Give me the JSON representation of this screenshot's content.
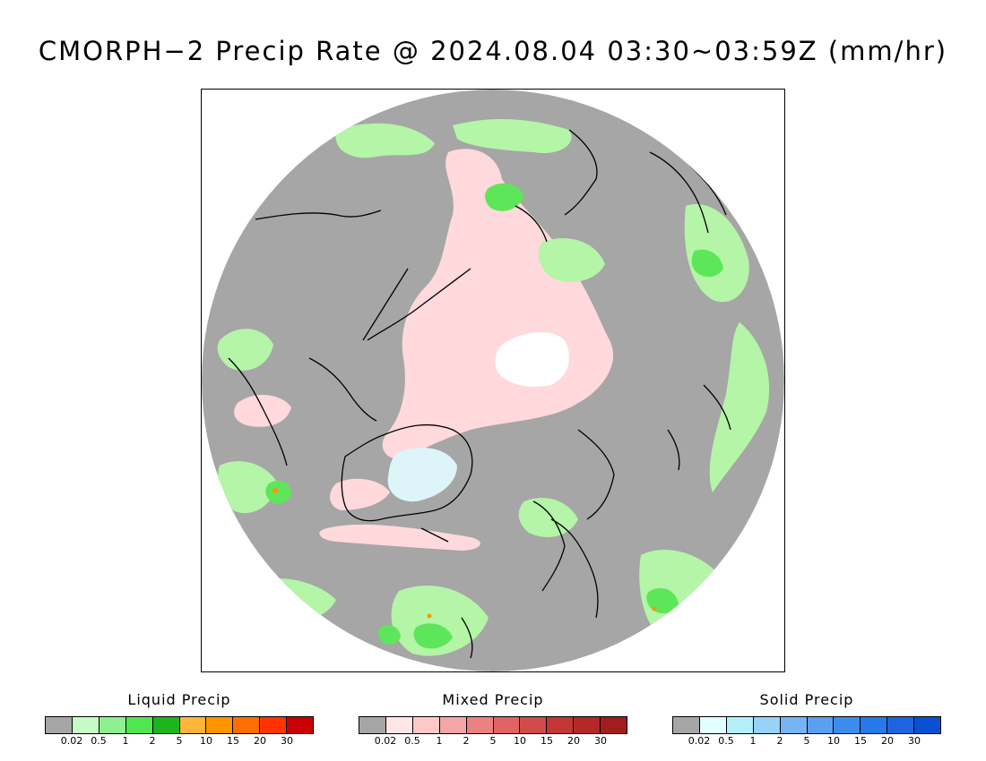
{
  "title": "CMORPH−2 Precip Rate @ 2024.08.04 03:30~03:59Z (mm/hr)",
  "map": {
    "projection": "north-polar-stereographic",
    "colors": {
      "background": "#a6a6a6",
      "liquid_light": "#b4f5a8",
      "liquid": "#5ee65a",
      "mixed_light": "#ffd9dc",
      "solid_light": "#ddf5f8",
      "coast": "#000000"
    }
  },
  "legends": [
    {
      "title": "Liquid Precip",
      "ticks": [
        "0.02",
        "0.5",
        "1",
        "2",
        "5",
        "10",
        "15",
        "20",
        "30"
      ],
      "colors": [
        "#a6a6a6",
        "#c8fac8",
        "#8ef08e",
        "#50e650",
        "#1eb41e",
        "#ffb43c",
        "#ff9600",
        "#ff6e00",
        "#ff3200",
        "#c80000"
      ]
    },
    {
      "title": "Mixed Precip",
      "ticks": [
        "0.02",
        "0.5",
        "1",
        "2",
        "5",
        "10",
        "15",
        "20",
        "30"
      ],
      "colors": [
        "#a6a6a6",
        "#ffe6e6",
        "#ffc8c8",
        "#f5a5a5",
        "#eb8282",
        "#e16464",
        "#d24b4b",
        "#c33737",
        "#b42828",
        "#a01e1e"
      ]
    },
    {
      "title": "Solid Precip",
      "ticks": [
        "0.02",
        "0.5",
        "1",
        "2",
        "5",
        "10",
        "15",
        "20",
        "30"
      ],
      "colors": [
        "#a6a6a6",
        "#e1ffff",
        "#b4f0fa",
        "#96d2fa",
        "#78b4f5",
        "#5aa0f0",
        "#3c8cf0",
        "#2878eb",
        "#1e64e1",
        "#0a50d2"
      ]
    }
  ]
}
